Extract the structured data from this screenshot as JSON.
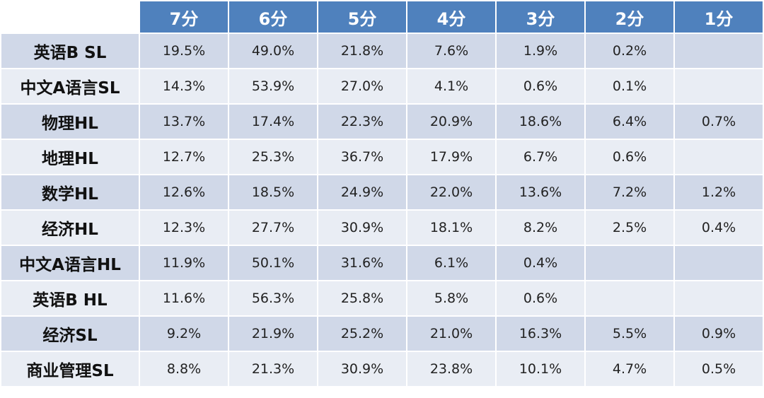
{
  "table": {
    "headers": [
      "7分",
      "6分",
      "5分",
      "4分",
      "3分",
      "2分",
      "1分"
    ],
    "rows": [
      {
        "subject": "英语B SL",
        "values": [
          "19.5%",
          "49.0%",
          "21.8%",
          "7.6%",
          "1.9%",
          "0.2%",
          ""
        ]
      },
      {
        "subject": "中文A语言SL",
        "values": [
          "14.3%",
          "53.9%",
          "27.0%",
          "4.1%",
          "0.6%",
          "0.1%",
          ""
        ]
      },
      {
        "subject": "物理HL",
        "values": [
          "13.7%",
          "17.4%",
          "22.3%",
          "20.9%",
          "18.6%",
          "6.4%",
          "0.7%"
        ]
      },
      {
        "subject": "地理HL",
        "values": [
          "12.7%",
          "25.3%",
          "36.7%",
          "17.9%",
          "6.7%",
          "0.6%",
          ""
        ]
      },
      {
        "subject": "数学HL",
        "values": [
          "12.6%",
          "18.5%",
          "24.9%",
          "22.0%",
          "13.6%",
          "7.2%",
          "1.2%"
        ]
      },
      {
        "subject": "经济HL",
        "values": [
          "12.3%",
          "27.7%",
          "30.9%",
          "18.1%",
          "8.2%",
          "2.5%",
          "0.4%"
        ]
      },
      {
        "subject": "中文A语言HL",
        "values": [
          "11.9%",
          "50.1%",
          "31.6%",
          "6.1%",
          "0.4%",
          "",
          ""
        ]
      },
      {
        "subject": "英语B HL",
        "values": [
          "11.6%",
          "56.3%",
          "25.8%",
          "5.8%",
          "0.6%",
          "",
          ""
        ]
      },
      {
        "subject": "经济SL",
        "values": [
          "9.2%",
          "21.9%",
          "25.2%",
          "21.0%",
          "16.3%",
          "5.5%",
          "0.9%"
        ]
      },
      {
        "subject": "商业管理SL",
        "values": [
          "8.8%",
          "21.3%",
          "30.9%",
          "23.8%",
          "10.1%",
          "4.7%",
          "0.5%"
        ]
      }
    ]
  },
  "colors": {
    "header_bg": "#4f81bd",
    "row_odd_bg": "#d0d8e8",
    "row_even_bg": "#e9edf4"
  }
}
